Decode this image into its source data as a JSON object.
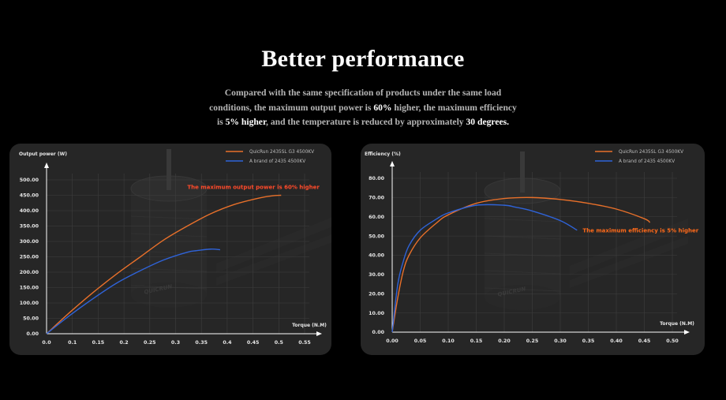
{
  "headline": {
    "title": "Better performance",
    "line1": "Compared with the same specification of products under the same load",
    "line2_a": "conditions, the maximum output power is ",
    "line2_b": "60%",
    "line2_c": " higher, the maximum efficiency",
    "line3_a": "is ",
    "line3_b": "5% higher",
    "line3_c": ", and the temperature is reduced by approximately ",
    "line3_d": "30 degrees."
  },
  "colors": {
    "quicrun": "#e8702a",
    "brand": "#2f63d8",
    "annotation_power": "#ff4a2a",
    "annotation_eff": "#ff6a1a",
    "grid": "#3e3e3e",
    "axis_text": "#e6e6e6"
  },
  "motor_logo_text": "QUICRUN",
  "chart_data": [
    {
      "type": "line",
      "ylabel": "Output power (W)",
      "xlabel": "Torque (N.M)",
      "xlim": [
        0,
        0.55
      ],
      "ylim": [
        0,
        500
      ],
      "xticks": [
        "0.0",
        "0.1",
        "0.15",
        "0.2",
        "0.25",
        "0.3",
        "0.35",
        "0.4",
        "0.45",
        "0.5",
        "0.55"
      ],
      "yticks": [
        "0.00",
        "50.00",
        "100.00",
        "150.00",
        "200.00",
        "250.00",
        "300.00",
        "350.00",
        "400.00",
        "450.00",
        "500.00"
      ],
      "annotation": {
        "text": "The maximum output power is 60% higher",
        "x": 0.3,
        "y": 470
      },
      "legend_position": "top-right",
      "grid": true,
      "series": [
        {
          "name": "QuicRun 2435SL G3 4500KV",
          "color_key": "quicrun",
          "x": [
            0,
            0.05,
            0.1,
            0.15,
            0.2,
            0.25,
            0.3,
            0.35,
            0.4,
            0.45,
            0.48,
            0.5
          ],
          "y": [
            0,
            70,
            135,
            195,
            250,
            305,
            350,
            390,
            420,
            440,
            448,
            450
          ]
        },
        {
          "name": "A brand of 2435 4500KV",
          "color_key": "brand",
          "x": [
            0,
            0.05,
            0.1,
            0.15,
            0.2,
            0.25,
            0.3,
            0.32,
            0.35,
            0.37
          ],
          "y": [
            0,
            60,
            115,
            165,
            205,
            240,
            265,
            270,
            275,
            273
          ]
        }
      ]
    },
    {
      "type": "line",
      "ylabel": "Efficiency (%)",
      "xlabel": "Torque (N.M)",
      "xlim": [
        0,
        0.5
      ],
      "ylim": [
        0,
        80
      ],
      "xticks": [
        "0.00",
        "0.05",
        "0.10",
        "0.15",
        "0.20",
        "0.25",
        "0.30",
        "0.35",
        "0.40",
        "0.45",
        "0.50"
      ],
      "yticks": [
        "0.00",
        "10.00",
        "20.00",
        "30.00",
        "40.00",
        "50.00",
        "60.00",
        "70.00",
        "80.00"
      ],
      "annotation": {
        "text": "The maximum efficiency is 5% higher",
        "x": 0.34,
        "y": 52
      },
      "legend_position": "top-right",
      "grid": true,
      "series": [
        {
          "name": "QuicRun 2435SL G3 4500KV",
          "color_key": "quicrun",
          "x": [
            0,
            0.01,
            0.02,
            0.03,
            0.05,
            0.08,
            0.1,
            0.15,
            0.2,
            0.25,
            0.3,
            0.35,
            0.4,
            0.45,
            0.46
          ],
          "y": [
            0,
            18,
            32,
            40,
            49,
            57,
            61,
            67,
            69.5,
            70,
            69,
            67,
            64,
            59,
            57
          ]
        },
        {
          "name": "A brand of 2435 4500KV",
          "color_key": "brand",
          "x": [
            0,
            0.01,
            0.02,
            0.03,
            0.05,
            0.08,
            0.1,
            0.15,
            0.2,
            0.22,
            0.25,
            0.3,
            0.33
          ],
          "y": [
            0,
            25,
            37,
            45,
            53,
            59,
            62,
            66,
            66,
            65,
            63,
            58,
            53
          ]
        }
      ]
    }
  ]
}
